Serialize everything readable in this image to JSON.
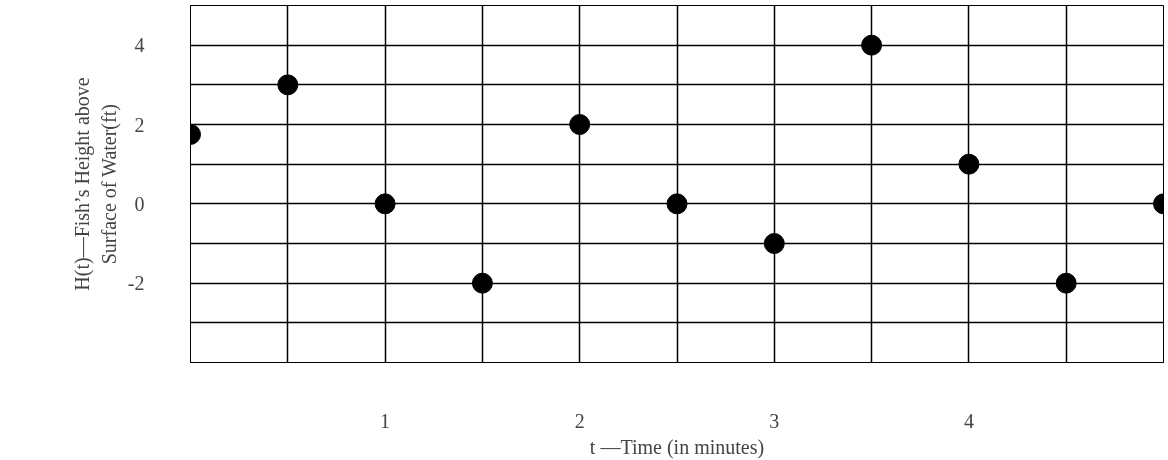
{
  "chart_data": {
    "type": "scatter",
    "xlabel": "t —Time (in minutes)",
    "ylabel": "H(t)—Fish’s Height above\nSurface of Water(ft)",
    "x": [
      0,
      0.5,
      1,
      1.5,
      2,
      2.5,
      3,
      3.5,
      4,
      4.5,
      5
    ],
    "series": [
      {
        "color": "#000000",
        "values": [
          1.75,
          3,
          0,
          -2,
          2,
          0,
          -1,
          4,
          1,
          -2,
          0
        ]
      }
    ],
    "marker": "circle",
    "grid": true,
    "xlim": [
      0,
      5
    ],
    "ylim": [
      -4,
      5
    ],
    "xticks": [
      {
        "value": 0,
        "label": null
      },
      {
        "value": 0.5,
        "label": null
      },
      1,
      {
        "value": 1.5,
        "label": null
      },
      2,
      {
        "value": 2.5,
        "label": null
      },
      3,
      {
        "value": 3.5,
        "label": null
      },
      4,
      {
        "value": 4.5,
        "label": null
      },
      {
        "value": 5,
        "label": null
      }
    ],
    "yticks": [
      {
        "value": -4,
        "label": null
      },
      {
        "value": -3,
        "label": null
      },
      {
        "value": -2,
        "label": "-2"
      },
      {
        "value": -1,
        "label": null
      },
      {
        "value": 0,
        "label": "0"
      },
      {
        "value": 1,
        "label": null
      },
      2,
      {
        "value": 3,
        "label": null
      },
      4,
      {
        "value": 5,
        "label": null
      }
    ]
  }
}
